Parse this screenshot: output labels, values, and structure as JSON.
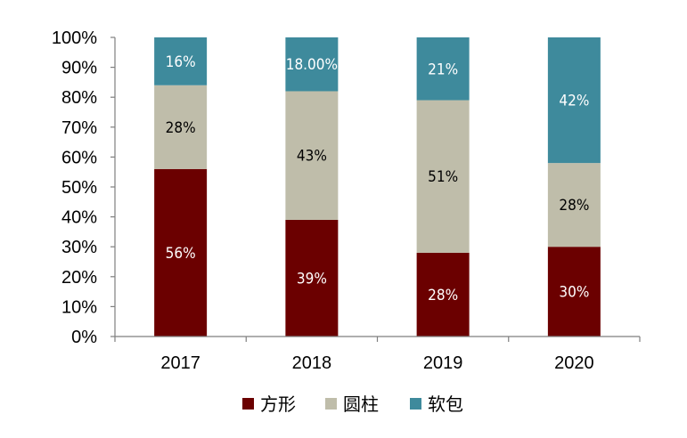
{
  "chart_data": {
    "type": "bar",
    "stacked": true,
    "categories": [
      "2017",
      "2018",
      "2019",
      "2020"
    ],
    "series": [
      {
        "name": "方形",
        "color": "#6b0000",
        "label_color": "#ffffff",
        "values": [
          56,
          39,
          28,
          30
        ],
        "labels": [
          "56%",
          "39%",
          "28%",
          "30%"
        ]
      },
      {
        "name": "圆柱",
        "color": "#bfbdaa",
        "label_color": "#000000",
        "values": [
          28,
          43,
          51,
          28
        ],
        "labels": [
          "28%",
          "43%",
          "51%",
          "28%"
        ]
      },
      {
        "name": "软包",
        "color": "#3e8a9c",
        "label_color": "#ffffff",
        "values": [
          16,
          18,
          21,
          42
        ],
        "labels": [
          "16%",
          "18.00%",
          "21%",
          "42%"
        ]
      }
    ],
    "yticks": [
      "0%",
      "10%",
      "20%",
      "30%",
      "40%",
      "50%",
      "60%",
      "70%",
      "80%",
      "90%",
      "100%"
    ],
    "ylim": [
      0,
      100
    ],
    "legend_position": "bottom",
    "grid": false
  }
}
